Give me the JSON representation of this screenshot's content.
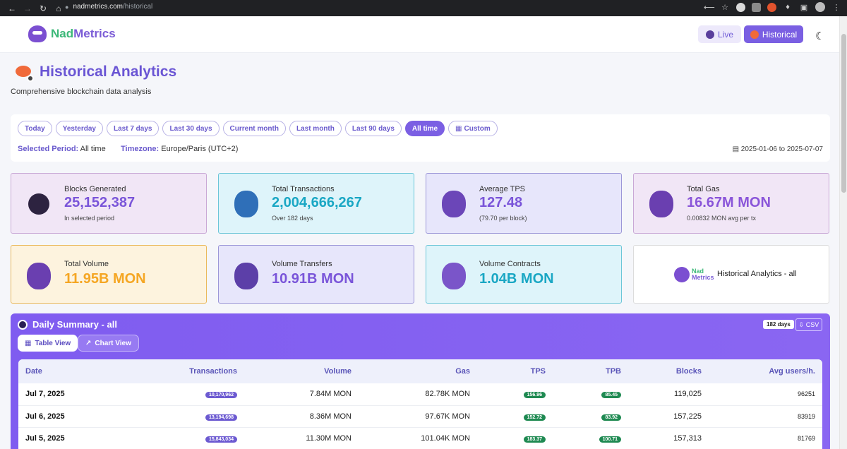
{
  "browser": {
    "url_host": "nadmetrics.com",
    "url_path": "/historical"
  },
  "header": {
    "brand_nad": "Nad",
    "brand_metrics": "Metrics",
    "live_label": "Live",
    "historical_label": "Historical"
  },
  "page": {
    "title": "Historical Analytics",
    "subtitle": "Comprehensive blockchain data analysis"
  },
  "filters": {
    "chips": [
      "Today",
      "Yesterday",
      "Last 7 days",
      "Last 30 days",
      "Current month",
      "Last month",
      "Last 90 days",
      "All time",
      "Custom"
    ],
    "active": "All time",
    "selected_period_label": "Selected Period:",
    "selected_period_value": "All time",
    "timezone_label": "Timezone:",
    "timezone_value": "Europe/Paris (UTC+2)",
    "range": "2025-01-06 to 2025-07-07"
  },
  "stats": {
    "blocks": {
      "label": "Blocks Generated",
      "value": "25,152,387",
      "sub": "In selected period"
    },
    "transactions": {
      "label": "Total Transactions",
      "value": "2,004,666,267",
      "sub": "Over 182 days"
    },
    "tps": {
      "label": "Average TPS",
      "value": "127.48",
      "sub": "(79.70 per block)"
    },
    "gas": {
      "label": "Total Gas",
      "value": "16.67M MON",
      "sub": "0.00832 MON avg per tx"
    },
    "volume": {
      "label": "Total Volume",
      "value": "11.95B MON"
    },
    "transfers": {
      "label": "Volume Transfers",
      "value": "10.91B MON"
    },
    "contracts": {
      "label": "Volume Contracts",
      "value": "1.04B MON"
    },
    "brand_caption": "Historical Analytics - all",
    "brand_nad": "Nad",
    "brand_metrics": "Metrics"
  },
  "summary": {
    "title": "Daily Summary - all",
    "days_badge": "182 days",
    "csv_label": "CSV",
    "table_view_label": "Table View",
    "chart_view_label": "Chart View",
    "columns": [
      "Date",
      "Transactions",
      "Volume",
      "Gas",
      "TPS",
      "TPB",
      "Blocks",
      "Avg users/h."
    ],
    "rows": [
      {
        "date": "Jul 7, 2025",
        "tx": "10,170,962",
        "volume": "7.84M MON",
        "gas": "82.78K MON",
        "tps": "156.96",
        "tpb": "85.45",
        "blocks": "119,025",
        "users": "96251"
      },
      {
        "date": "Jul 6, 2025",
        "tx": "13,194,698",
        "volume": "8.36M MON",
        "gas": "97.67K MON",
        "tps": "152.72",
        "tpb": "83.92",
        "blocks": "157,225",
        "users": "83919"
      },
      {
        "date": "Jul 5, 2025",
        "tx": "15,843,034",
        "volume": "11.30M MON",
        "gas": "101.04K MON",
        "tps": "183.37",
        "tpb": "100.71",
        "blocks": "157,313",
        "users": "81769"
      }
    ]
  },
  "colors": {
    "accent": "#7b5fe3",
    "brand_green": "#3cb878",
    "pill_green": "#1f8a52",
    "value_purple": "#7a55d9",
    "value_cyan": "#1aa7c4",
    "value_orange": "#f5a623"
  }
}
